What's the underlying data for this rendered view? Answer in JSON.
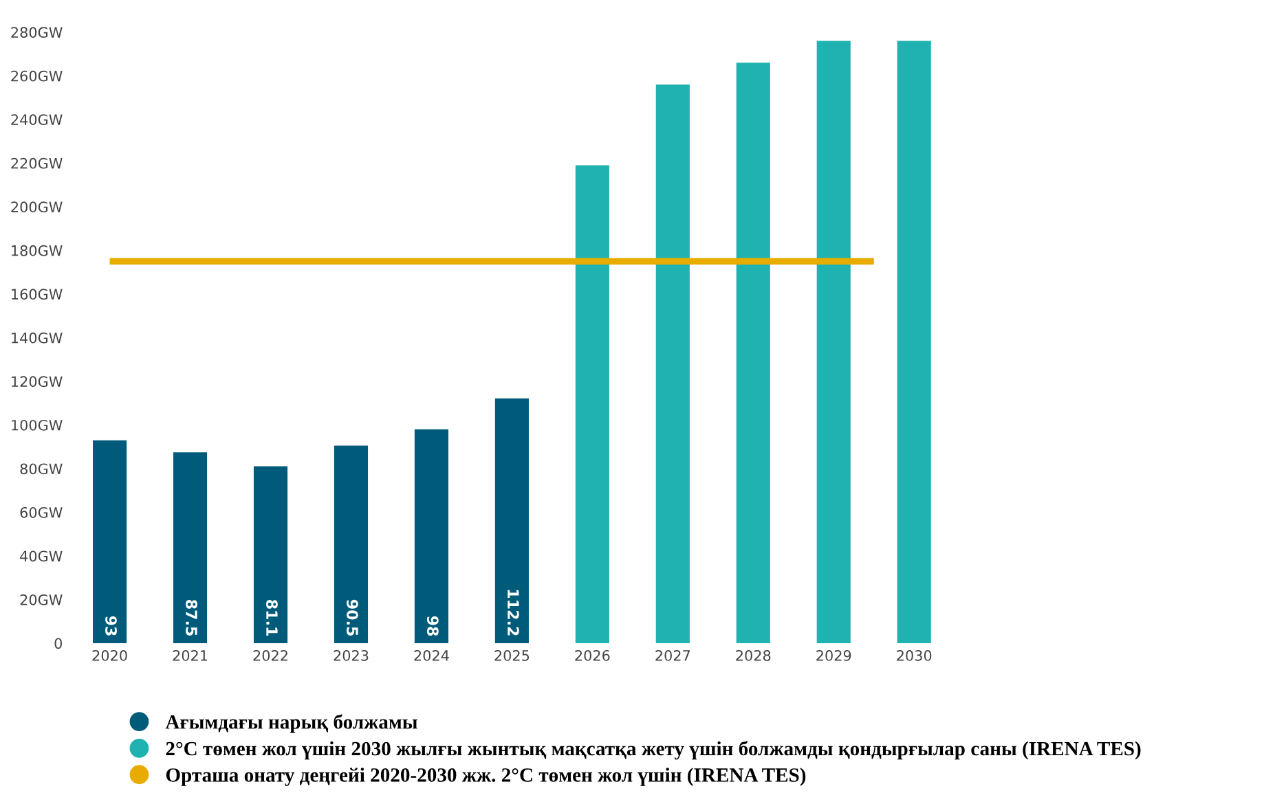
{
  "chart_data": {
    "type": "bar",
    "categories": [
      "2020",
      "2021",
      "2022",
      "2023",
      "2024",
      "2025",
      "2026",
      "2027",
      "2028",
      "2029",
      "2030"
    ],
    "series": [
      {
        "name": "Ағымдағы нарық болжамы",
        "color": "#005b7a",
        "values": [
          93,
          87.5,
          81.1,
          90.5,
          98,
          112.2,
          null,
          null,
          null,
          null,
          null
        ],
        "value_labels": [
          "93",
          "87.5",
          "81.1",
          "90.5",
          "98",
          "112.2",
          null,
          null,
          null,
          null,
          null
        ]
      },
      {
        "name": "2°C төмен жол үшін 2030 жылғы жынтық мақсатқа жету үшін болжамды қондырғылар саны (IRENA TES)",
        "color": "#20b2b0",
        "values": [
          null,
          null,
          null,
          null,
          null,
          null,
          219,
          256,
          266,
          276,
          276
        ]
      }
    ],
    "ref_lines": [
      {
        "axis": "y",
        "value": 175,
        "label": "Орташа онату деңгейі 2020-2030 жж. 2°C төмен жол үшін (IRENA TES)",
        "color": "#e8ac00",
        "line_style": "solid"
      }
    ],
    "ylim": [
      0,
      280
    ],
    "yticks": [
      0,
      {
        "value": 20,
        "label": "20GW"
      },
      {
        "value": 40,
        "label": "40GW"
      },
      {
        "value": 60,
        "label": "60GW"
      },
      {
        "value": 80,
        "label": "80GW"
      },
      {
        "value": 100,
        "label": "100GW"
      },
      {
        "value": 120,
        "label": "120GW"
      },
      {
        "value": 140,
        "label": "140GW"
      },
      {
        "value": 160,
        "label": "160GW"
      },
      {
        "value": 180,
        "label": "180GW"
      },
      {
        "value": 200,
        "label": "200GW"
      },
      {
        "value": 220,
        "label": "220GW"
      },
      {
        "value": 240,
        "label": "240GW"
      },
      {
        "value": 260,
        "label": "260GW"
      },
      {
        "value": 280,
        "label": "280GW"
      }
    ],
    "grid": false,
    "legend": "bottom",
    "marker": "circle"
  }
}
